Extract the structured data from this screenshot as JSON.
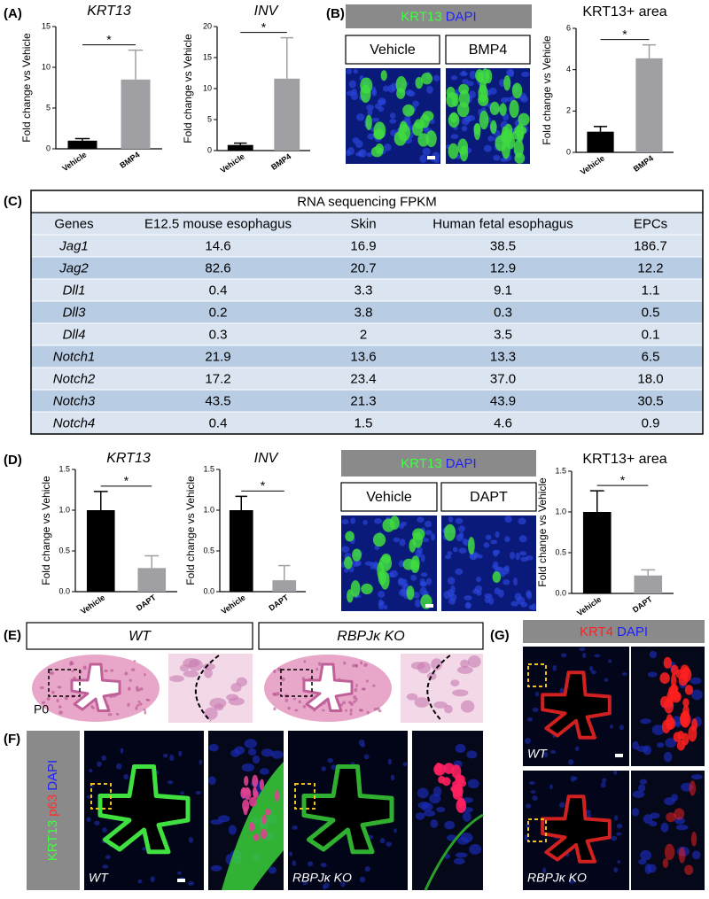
{
  "panels": {
    "A": "(A)",
    "B": "(B)",
    "C": "(C)",
    "D": "(D)",
    "E": "(E)",
    "F": "(F)",
    "G": "(G)"
  },
  "chart_data": [
    {
      "type": "bar",
      "title": "KRT13",
      "ylabel": "Fold change vs Vehicle",
      "categories": [
        "Vehicle",
        "BMP4"
      ],
      "values": [
        1,
        8.5
      ],
      "errors": [
        0.25,
        3.6
      ],
      "colors": [
        "#000000",
        "#a0a0a4"
      ],
      "ylim": [
        0,
        15
      ],
      "yticks": [
        0,
        5,
        10,
        15
      ],
      "annotation": "*"
    },
    {
      "type": "bar",
      "title": "INV",
      "ylabel": "Fold change vs Vehicle",
      "categories": [
        "Vehicle",
        "BMP4"
      ],
      "values": [
        0.9,
        11.6
      ],
      "errors": [
        0.3,
        6.6
      ],
      "colors": [
        "#000000",
        "#a0a0a4"
      ],
      "ylim": [
        0,
        20
      ],
      "yticks": [
        0,
        5,
        10,
        15,
        20
      ],
      "annotation": "*"
    },
    {
      "type": "bar",
      "title": "KRT13+ area",
      "ylabel": "Fold change vs Vehicle",
      "categories": [
        "Vehicle",
        "BMP4"
      ],
      "values": [
        1,
        4.55
      ],
      "errors": [
        0.25,
        0.65
      ],
      "colors": [
        "#000000",
        "#a0a0a4"
      ],
      "ylim": [
        0,
        6
      ],
      "yticks": [
        0,
        2,
        4,
        6
      ],
      "annotation": "*"
    },
    {
      "type": "bar",
      "title": "KRT13",
      "ylabel": "Fold change vs Vehicle",
      "categories": [
        "Vehicle",
        "DAPT"
      ],
      "values": [
        1.0,
        0.29
      ],
      "errors": [
        0.23,
        0.15
      ],
      "colors": [
        "#000000",
        "#a0a0a4"
      ],
      "ylim": [
        0,
        1.5
      ],
      "yticks": [
        {
          "value": 0,
          "label": "0.0"
        },
        {
          "value": 0.5,
          "label": "0.5"
        },
        {
          "value": 1,
          "label": "1.0"
        },
        {
          "value": 1.5,
          "label": "1.5"
        }
      ],
      "annotation": "*"
    },
    {
      "type": "bar",
      "title": "INV",
      "ylabel": "Fold change vs Vehicle",
      "categories": [
        "Vehicle",
        "DAPT"
      ],
      "values": [
        1.0,
        0.14
      ],
      "errors": [
        0.17,
        0.18
      ],
      "colors": [
        "#000000",
        "#a0a0a4"
      ],
      "ylim": [
        0,
        1.5
      ],
      "yticks": [
        {
          "value": 0,
          "label": "0.0"
        },
        {
          "value": 0.5,
          "label": "0.5"
        },
        {
          "value": 1,
          "label": "1.0"
        },
        {
          "value": 1.5,
          "label": "1.5"
        }
      ],
      "annotation": "*"
    },
    {
      "type": "bar",
      "title": "KRT13+ area",
      "ylabel": "Fold change vs Vehicle",
      "categories": [
        "Vehicle",
        "DAPT"
      ],
      "values": [
        1.0,
        0.22
      ],
      "errors": [
        0.26,
        0.07
      ],
      "colors": [
        "#000000",
        "#a0a0a4"
      ],
      "ylim": [
        0,
        1.5
      ],
      "yticks": [
        {
          "value": 0,
          "label": "0.0"
        },
        {
          "value": 0.5,
          "label": "0.5"
        },
        {
          "value": 1,
          "label": "1.0"
        },
        {
          "value": 1.5,
          "label": "1.5"
        }
      ],
      "annotation": "*"
    }
  ],
  "table": {
    "title": "RNA sequencing FPKM",
    "columns": [
      "Genes",
      "E12.5 mouse esophagus",
      "Skin",
      "Human fetal esophagus",
      "EPCs"
    ],
    "rows": [
      [
        "Jag1",
        "14.6",
        "16.9",
        "38.5",
        "186.7"
      ],
      [
        "Jag2",
        "82.6",
        "20.7",
        "12.9",
        "12.2"
      ],
      [
        "Dll1",
        "0.4",
        "3.3",
        "9.1",
        "1.1"
      ],
      [
        "Dll3",
        "0.2",
        "3.8",
        "0.3",
        "0.5"
      ],
      [
        "Dll4",
        "0.3",
        "2",
        "3.5",
        "0.1"
      ],
      [
        "Notch1",
        "21.9",
        "13.6",
        "13.3",
        "6.5"
      ],
      [
        "Notch2",
        "17.2",
        "23.4",
        "37.0",
        "18.0"
      ],
      [
        "Notch3",
        "43.5",
        "21.3",
        "43.9",
        "30.5"
      ],
      [
        "Notch4",
        "0.4",
        "1.5",
        "4.6",
        "0.9"
      ]
    ]
  },
  "images": {
    "B": {
      "header": [
        "KRT13",
        "DAPI"
      ],
      "conditions": [
        "Vehicle",
        "BMP4"
      ]
    },
    "D": {
      "header": [
        "KRT13",
        "DAPI"
      ],
      "conditions": [
        "Vehicle",
        "DAPT"
      ]
    },
    "E": {
      "genotypes": [
        "WT",
        "RBPJκ KO"
      ],
      "stage": "P0"
    },
    "F": {
      "stains": [
        "KRT13",
        "p63",
        "DAPI"
      ],
      "genotypes": [
        "WT",
        "RBPJκ KO"
      ]
    },
    "G": {
      "stains": [
        "KRT4",
        "DAPI"
      ],
      "genotypes": [
        "WT",
        "RBPJκ KO"
      ]
    }
  }
}
